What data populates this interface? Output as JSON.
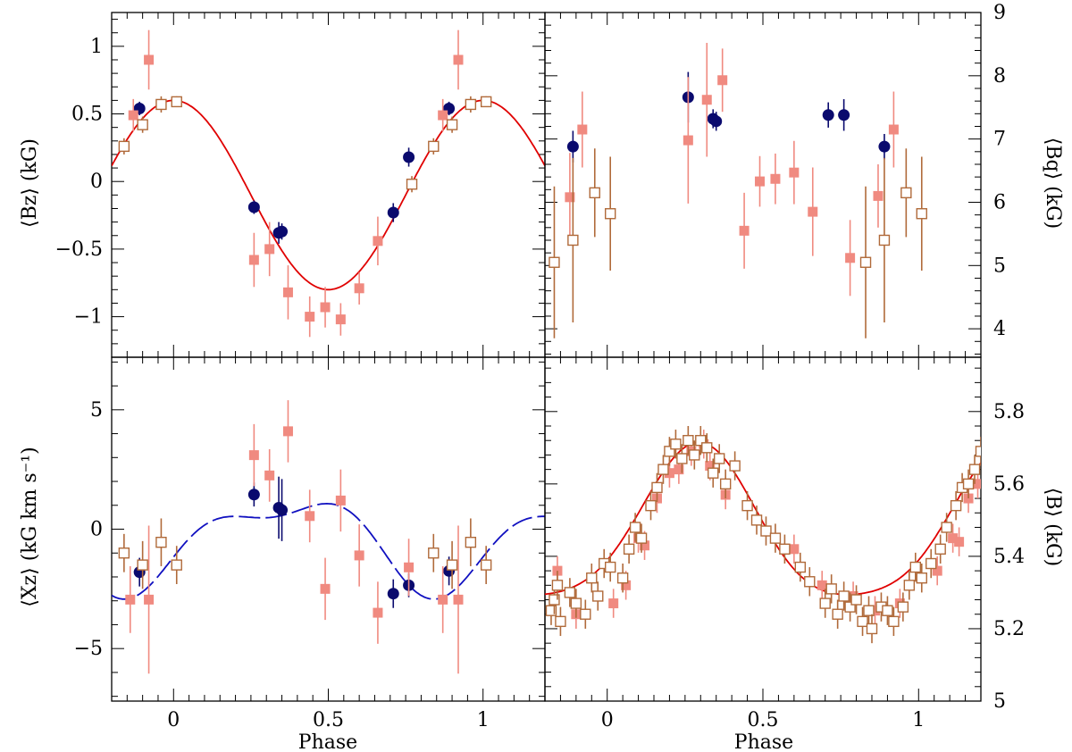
{
  "figure": {
    "xlabel_left": "Phase",
    "xlabel_right": "Phase",
    "ylabel_top_left": "⟨Bz⟩ (kG)",
    "ylabel_top_right": "⟨Bq⟩ (kG)",
    "ylabel_bottom_left": "⟨Xz⟩ (kG km s⁻¹)",
    "ylabel_bottom_right": "⟨B⟩ (kG)"
  },
  "colors": {
    "navy": "#0a0a6e",
    "salmon": "#f08a80",
    "brown": "#b06a3a",
    "red_curve": "#e00000",
    "blue_curve": "#1010c0"
  },
  "chart_data": [
    {
      "id": "bz",
      "type": "scatter",
      "xlabel": "",
      "ylabel": "⟨Bz⟩ (kG)",
      "xlim": [
        -0.2,
        1.2
      ],
      "ylim": [
        -1.3,
        1.25
      ],
      "yticks": [
        -1,
        -0.5,
        0,
        0.5,
        1
      ],
      "ytick_labels": [
        "−1",
        "−0.5",
        "0",
        "0.5",
        "1"
      ],
      "xticks": [
        0,
        0.5,
        1
      ],
      "ytick_side": "left",
      "series": [
        {
          "style": "filled-circle",
          "color": "navy",
          "points": [
            [
              -0.11,
              0.54,
              0.05
            ],
            [
              0.26,
              -0.19,
              0.05
            ],
            [
              0.34,
              -0.38,
              0.08
            ],
            [
              0.35,
              -0.37,
              0.06
            ],
            [
              0.71,
              -0.23,
              0.07
            ],
            [
              0.76,
              0.18,
              0.07
            ],
            [
              0.89,
              0.54,
              0.05
            ]
          ]
        },
        {
          "style": "filled-square",
          "color": "salmon",
          "points": [
            [
              -0.13,
              0.49,
              0.12
            ],
            [
              -0.08,
              0.9,
              0.22
            ],
            [
              0.26,
              -0.58,
              0.2
            ],
            [
              0.31,
              -0.5,
              0.2
            ],
            [
              0.37,
              -0.82,
              0.2
            ],
            [
              0.44,
              -1.0,
              0.15
            ],
            [
              0.49,
              -0.93,
              0.15
            ],
            [
              0.54,
              -1.02,
              0.12
            ],
            [
              0.6,
              -0.79,
              0.12
            ],
            [
              0.66,
              -0.44,
              0.18
            ],
            [
              0.87,
              0.49,
              0.12
            ],
            [
              0.92,
              0.9,
              0.22
            ]
          ]
        },
        {
          "style": "open-square",
          "color": "brown",
          "points": [
            [
              -0.16,
              0.26,
              0.06
            ],
            [
              -0.1,
              0.42,
              0.06
            ],
            [
              -0.04,
              0.57,
              0.06
            ],
            [
              0.01,
              0.59,
              0.04
            ],
            [
              0.77,
              -0.02,
              0.06
            ],
            [
              0.84,
              0.26,
              0.06
            ],
            [
              0.9,
              0.42,
              0.06
            ],
            [
              0.96,
              0.57,
              0.06
            ],
            [
              1.01,
              0.59,
              0.04
            ]
          ]
        }
      ],
      "curve": {
        "style": "solid",
        "color": "red_curve",
        "mean": -0.1,
        "amp": 0.7,
        "phase0": 0.0,
        "harm2": 0
      }
    },
    {
      "id": "bq",
      "type": "scatter",
      "xlabel": "",
      "ylabel": "⟨Bq⟩ (kG)",
      "xlim": [
        -0.2,
        1.2
      ],
      "ylim": [
        3.55,
        9.0
      ],
      "yticks": [
        4,
        5,
        6,
        7,
        8,
        9
      ],
      "ytick_labels": [
        "4",
        "5",
        "6",
        "7",
        "8",
        "9"
      ],
      "xticks": [
        0,
        0.5,
        1
      ],
      "ytick_side": "right",
      "series": [
        {
          "style": "filled-circle",
          "color": "navy",
          "points": [
            [
              -0.11,
              6.88,
              0.25
            ],
            [
              0.26,
              7.66,
              0.4
            ],
            [
              0.34,
              7.32,
              0.15
            ],
            [
              0.35,
              7.28,
              0.15
            ],
            [
              0.71,
              7.38,
              0.2
            ],
            [
              0.76,
              7.38,
              0.25
            ],
            [
              0.89,
              6.88,
              0.2
            ]
          ]
        },
        {
          "style": "filled-square",
          "color": "salmon",
          "points": [
            [
              -0.12,
              6.08,
              0.7
            ],
            [
              -0.08,
              7.15,
              0.6
            ],
            [
              0.26,
              6.98,
              1.0
            ],
            [
              0.32,
              7.62,
              0.9
            ],
            [
              0.37,
              7.93,
              0.5
            ],
            [
              0.44,
              5.55,
              0.6
            ],
            [
              0.49,
              6.33,
              0.4
            ],
            [
              0.54,
              6.37,
              0.4
            ],
            [
              0.6,
              6.47,
              0.5
            ],
            [
              0.66,
              5.85,
              0.7
            ],
            [
              0.78,
              5.12,
              0.6
            ],
            [
              0.87,
              6.1,
              0.5
            ],
            [
              0.92,
              7.15,
              0.6
            ]
          ]
        },
        {
          "style": "open-square",
          "color": "brown",
          "points": [
            [
              -0.17,
              5.05,
              1.2
            ],
            [
              -0.11,
              5.4,
              1.3
            ],
            [
              -0.04,
              6.15,
              0.7
            ],
            [
              0.01,
              5.82,
              0.9
            ],
            [
              0.83,
              5.05,
              1.2
            ],
            [
              0.89,
              5.4,
              1.3
            ],
            [
              0.96,
              6.15,
              0.7
            ],
            [
              1.01,
              5.82,
              0.9
            ]
          ]
        }
      ]
    },
    {
      "id": "xz",
      "type": "scatter",
      "xlabel": "Phase",
      "ylabel": "⟨Xz⟩ (kG km s⁻¹)",
      "xlim": [
        -0.2,
        1.2
      ],
      "ylim": [
        -7.2,
        7.2
      ],
      "yticks": [
        -5,
        0,
        5
      ],
      "ytick_labels": [
        "−5",
        "0",
        "5"
      ],
      "xticks": [
        0,
        0.5,
        1
      ],
      "xtick_labels": [
        "0",
        "0.5",
        "1"
      ],
      "ytick_side": "left",
      "series": [
        {
          "style": "filled-circle",
          "color": "navy",
          "points": [
            [
              -0.11,
              -1.8,
              0.6
            ],
            [
              0.26,
              1.45,
              0.5
            ],
            [
              0.34,
              0.9,
              1.3
            ],
            [
              0.35,
              0.8,
              1.3
            ],
            [
              0.71,
              -2.7,
              0.6
            ],
            [
              0.76,
              -2.35,
              0.5
            ],
            [
              0.89,
              -1.75,
              0.6
            ]
          ]
        },
        {
          "style": "filled-square",
          "color": "salmon",
          "points": [
            [
              -0.14,
              -2.95,
              1.4
            ],
            [
              -0.08,
              -2.95,
              3.1
            ],
            [
              0.26,
              3.1,
              1.3
            ],
            [
              0.31,
              2.25,
              1.1
            ],
            [
              0.37,
              4.1,
              1.3
            ],
            [
              0.44,
              0.55,
              1.1
            ],
            [
              0.49,
              -2.5,
              1.3
            ],
            [
              0.54,
              1.2,
              1.3
            ],
            [
              0.6,
              -1.1,
              1.3
            ],
            [
              0.66,
              -3.5,
              1.3
            ],
            [
              0.76,
              -1.6,
              1.2
            ],
            [
              0.87,
              -2.95,
              1.4
            ],
            [
              0.92,
              -2.95,
              3.1
            ]
          ]
        },
        {
          "style": "open-square",
          "color": "brown",
          "points": [
            [
              -0.16,
              -1.0,
              0.8
            ],
            [
              -0.1,
              -1.5,
              1.0
            ],
            [
              -0.04,
              -0.55,
              1.0
            ],
            [
              0.01,
              -1.5,
              0.8
            ],
            [
              0.84,
              -1.0,
              0.8
            ],
            [
              0.9,
              -1.5,
              1.0
            ],
            [
              0.96,
              -0.55,
              1.0
            ],
            [
              1.01,
              -1.5,
              0.8
            ]
          ]
        }
      ],
      "curve": {
        "style": "dashed",
        "color": "blue_curve",
        "mean": -0.45,
        "amp": 1.75,
        "phase0": 0.36,
        "harm2": 0.75,
        "harm2phase": 0.08
      }
    },
    {
      "id": "bmod",
      "type": "scatter",
      "xlabel": "Phase",
      "ylabel": "⟨B⟩ (kG)",
      "xlim": [
        -0.2,
        1.2
      ],
      "ylim": [
        5.0,
        5.95
      ],
      "yticks": [
        5,
        5.2,
        5.4,
        5.6,
        5.8
      ],
      "ytick_labels": [
        "5",
        "5.2",
        "5.4",
        "5.6",
        "5.8"
      ],
      "xticks": [
        0,
        0.5,
        1
      ],
      "xtick_labels": [
        "0",
        "0.5",
        "1"
      ],
      "ytick_side": "right",
      "series": [
        {
          "style": "filled-square",
          "color": "salmon",
          "points": [
            [
              -0.16,
              5.36,
              0.04
            ],
            [
              -0.1,
              5.24,
              0.04
            ],
            [
              0.02,
              5.27,
              0.04
            ],
            [
              0.06,
              5.32,
              0.04
            ],
            [
              0.1,
              5.45,
              0.04
            ],
            [
              0.12,
              5.43,
              0.04
            ],
            [
              0.16,
              5.56,
              0.04
            ],
            [
              0.2,
              5.63,
              0.04
            ],
            [
              0.23,
              5.64,
              0.04
            ],
            [
              0.27,
              5.69,
              0.04
            ],
            [
              0.31,
              5.71,
              0.04
            ],
            [
              0.33,
              5.65,
              0.04
            ],
            [
              0.38,
              5.57,
              0.04
            ],
            [
              0.6,
              5.42,
              0.04
            ],
            [
              0.69,
              5.32,
              0.04
            ],
            [
              0.79,
              5.29,
              0.04
            ],
            [
              0.86,
              5.25,
              0.04
            ],
            [
              0.94,
              5.27,
              0.04
            ],
            [
              1.06,
              5.36,
              0.04
            ],
            [
              1.11,
              5.45,
              0.04
            ],
            [
              1.13,
              5.44,
              0.04
            ],
            [
              1.16,
              5.56,
              0.04
            ],
            [
              1.19,
              5.6,
              0.04
            ]
          ]
        },
        {
          "style": "open-square",
          "color": "brown",
          "points": [
            [
              -0.18,
              5.25,
              0.04
            ],
            [
              -0.17,
              5.28,
              0.04
            ],
            [
              -0.16,
              5.32,
              0.04
            ],
            [
              -0.15,
              5.22,
              0.04
            ],
            [
              -0.12,
              5.3,
              0.04
            ],
            [
              -0.1,
              5.27,
              0.04
            ],
            [
              -0.07,
              5.24,
              0.04
            ],
            [
              -0.05,
              5.34,
              0.04
            ],
            [
              -0.03,
              5.29,
              0.04
            ],
            [
              -0.01,
              5.38,
              0.04
            ],
            [
              0.01,
              5.37,
              0.04
            ],
            [
              0.05,
              5.34,
              0.04
            ],
            [
              0.07,
              5.42,
              0.04
            ],
            [
              0.09,
              5.48,
              0.04
            ],
            [
              0.11,
              5.45,
              0.04
            ],
            [
              0.14,
              5.54,
              0.04
            ],
            [
              0.16,
              5.59,
              0.04
            ],
            [
              0.18,
              5.64,
              0.04
            ],
            [
              0.2,
              5.69,
              0.04
            ],
            [
              0.22,
              5.71,
              0.04
            ],
            [
              0.24,
              5.67,
              0.04
            ],
            [
              0.26,
              5.72,
              0.04
            ],
            [
              0.28,
              5.68,
              0.04
            ],
            [
              0.3,
              5.72,
              0.04
            ],
            [
              0.32,
              5.7,
              0.04
            ],
            [
              0.34,
              5.63,
              0.04
            ],
            [
              0.36,
              5.67,
              0.04
            ],
            [
              0.38,
              5.6,
              0.04
            ],
            [
              0.41,
              5.65,
              0.04
            ],
            [
              0.45,
              5.54,
              0.04
            ],
            [
              0.48,
              5.5,
              0.04
            ],
            [
              0.51,
              5.47,
              0.04
            ],
            [
              0.54,
              5.45,
              0.04
            ],
            [
              0.57,
              5.42,
              0.04
            ],
            [
              0.62,
              5.37,
              0.04
            ],
            [
              0.65,
              5.33,
              0.04
            ],
            [
              0.7,
              5.27,
              0.04
            ],
            [
              0.72,
              5.31,
              0.04
            ],
            [
              0.74,
              5.24,
              0.04
            ],
            [
              0.76,
              5.29,
              0.04
            ],
            [
              0.78,
              5.26,
              0.04
            ],
            [
              0.8,
              5.28,
              0.04
            ],
            [
              0.82,
              5.22,
              0.04
            ],
            [
              0.84,
              5.25,
              0.04
            ],
            [
              0.85,
              5.2,
              0.04
            ],
            [
              0.88,
              5.26,
              0.04
            ],
            [
              0.9,
              5.25,
              0.04
            ],
            [
              0.92,
              5.22,
              0.04
            ],
            [
              0.95,
              5.26,
              0.04
            ],
            [
              0.97,
              5.32,
              0.04
            ],
            [
              0.99,
              5.37,
              0.04
            ],
            [
              1.01,
              5.34,
              0.04
            ],
            [
              1.04,
              5.38,
              0.04
            ],
            [
              1.07,
              5.42,
              0.04
            ],
            [
              1.09,
              5.48,
              0.04
            ],
            [
              1.12,
              5.54,
              0.04
            ],
            [
              1.14,
              5.59,
              0.04
            ],
            [
              1.16,
              5.6,
              0.04
            ],
            [
              1.18,
              5.64,
              0.04
            ],
            [
              1.2,
              5.69,
              0.04
            ]
          ]
        }
      ],
      "curve": {
        "style": "solid",
        "color": "red_curve",
        "mean": 5.47,
        "amp": 0.21,
        "phase0": 0.29,
        "harm2": 0.035,
        "harm2phase": 0.3
      }
    }
  ]
}
